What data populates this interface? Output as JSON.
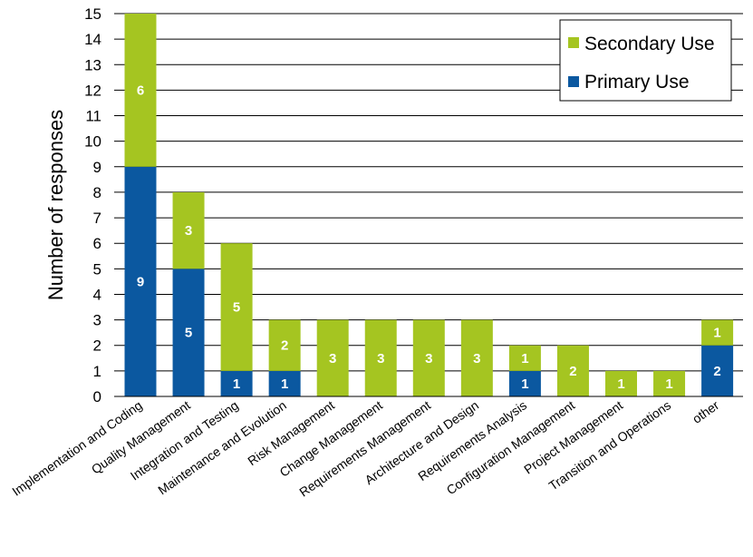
{
  "chart_data": {
    "type": "bar",
    "stacked": true,
    "title": "",
    "xlabel": "",
    "ylabel": "Number of responses",
    "ylim": [
      0,
      15
    ],
    "yticks": [
      "0",
      "1",
      "2",
      "3",
      "4",
      "5",
      "6",
      "7",
      "8",
      "9",
      "10",
      "11",
      "12",
      "13",
      "14",
      "15"
    ],
    "grid": true,
    "legend_position": "top-right",
    "categories": [
      "Implementation and Coding",
      "Quality Management",
      "Integration and Testing",
      "Maintenance and Evolution",
      "Risk Management",
      "Change Management",
      "Requirements Management",
      "Architecture and Design",
      "Requirements Analysis",
      "Configuration Management",
      "Project Management",
      "Transition and Operations",
      "other"
    ],
    "series": [
      {
        "name": "Primary Use",
        "color": "#0b58a0",
        "values": [
          9,
          5,
          1,
          1,
          0,
          0,
          0,
          0,
          1,
          0,
          0,
          0,
          2
        ]
      },
      {
        "name": "Secondary Use",
        "color": "#a5c521",
        "values": [
          6,
          3,
          5,
          2,
          3,
          3,
          3,
          3,
          1,
          2,
          1,
          1,
          1
        ]
      }
    ],
    "legend_order": [
      "Secondary Use",
      "Primary Use"
    ]
  }
}
